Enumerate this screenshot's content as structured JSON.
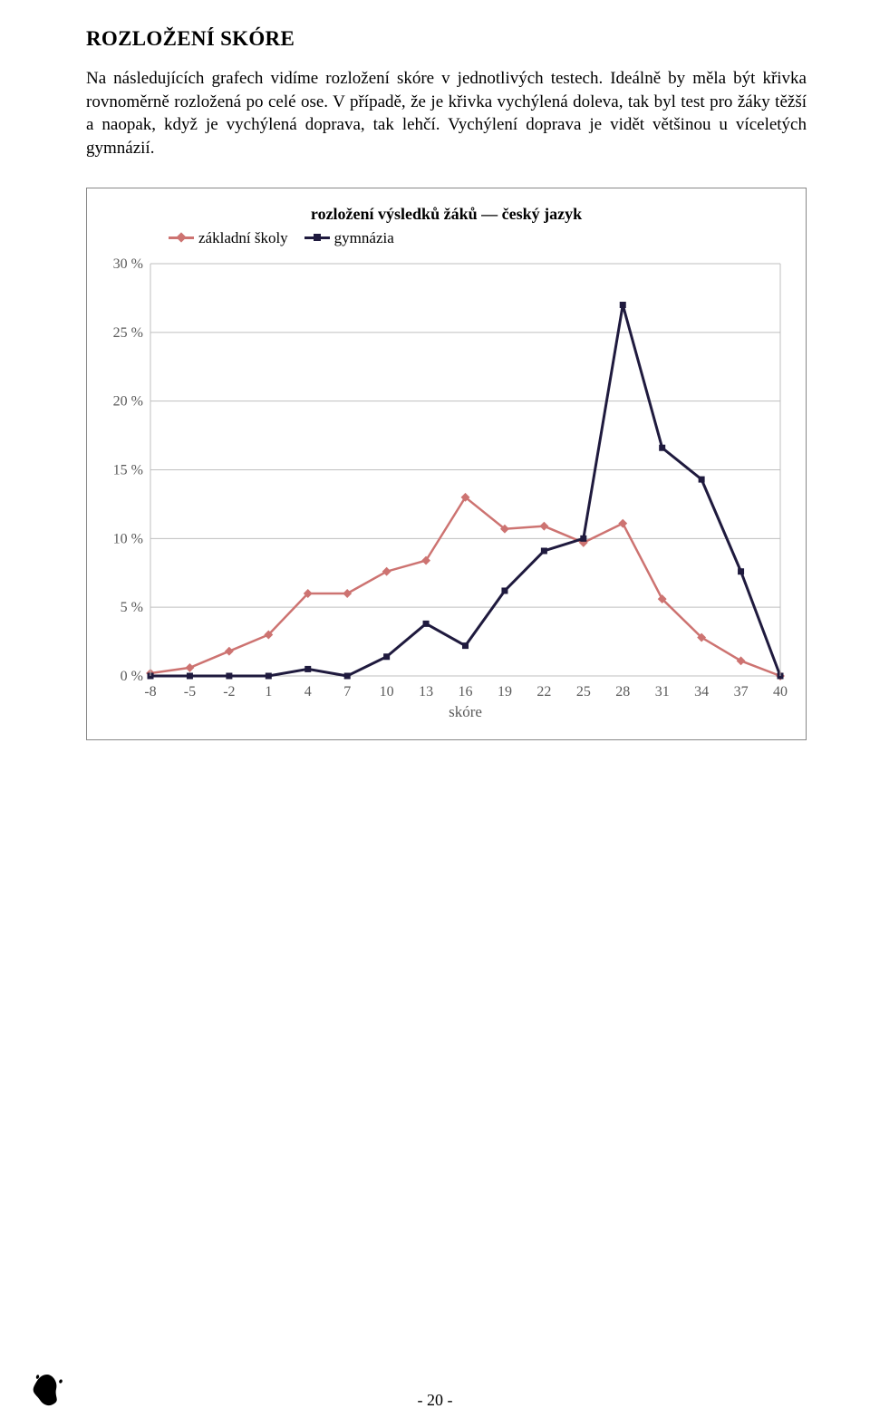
{
  "heading": "ROZLOŽENÍ SKÓRE",
  "paragraph": "Na následujících grafech vidíme rozložení skóre v jednotlivých testech. Ideálně by měla být křivka rovnoměrně rozložená po celé ose. V případě, že je křivka vychýlená doleva, tak byl test pro žáky těžší a naopak, když je vychýlená doprava, tak lehčí. Vychýlení doprava je vidět většinou u víceletých gymnázií.",
  "chart": {
    "title": "rozložení výsledků žáků — český jazyk",
    "type": "line",
    "x_label": "skóre",
    "x_ticks": [
      -8,
      -5,
      -2,
      1,
      4,
      7,
      10,
      13,
      16,
      19,
      22,
      25,
      28,
      31,
      34,
      37,
      40
    ],
    "y_ticks": [
      0,
      5,
      10,
      15,
      20,
      25,
      30
    ],
    "y_tick_labels": [
      "0 %",
      "5 %",
      "10 %",
      "15 %",
      "20 %",
      "25 %",
      "30 %"
    ],
    "xlim": [
      -8,
      40
    ],
    "ylim": [
      0,
      30
    ],
    "grid_color": "#bfbfbf",
    "background_color": "#ffffff",
    "series": [
      {
        "name": "základní školy",
        "color": "#cd7371",
        "marker": "diamond",
        "marker_size": 7,
        "line_width": 2.5,
        "x": [
          -8,
          -5,
          -2,
          1,
          4,
          7,
          10,
          13,
          16,
          19,
          22,
          25,
          28,
          31,
          34,
          37,
          40
        ],
        "y": [
          0.2,
          0.6,
          1.8,
          3.0,
          6.0,
          6.0,
          7.6,
          8.4,
          13.0,
          10.7,
          10.9,
          9.7,
          11.1,
          5.6,
          2.8,
          1.1,
          0.0
        ]
      },
      {
        "name": "gymnázia",
        "color": "#1f1a3e",
        "marker": "square",
        "marker_size": 7,
        "line_width": 3,
        "x": [
          -8,
          -5,
          -2,
          1,
          4,
          7,
          10,
          13,
          16,
          19,
          22,
          25,
          28,
          31,
          34,
          37,
          40
        ],
        "y": [
          0.0,
          0.0,
          0.0,
          0.0,
          0.5,
          0.0,
          1.4,
          3.8,
          2.2,
          6.2,
          9.1,
          10.0,
          27.0,
          16.6,
          14.3,
          7.6,
          0.0
        ]
      }
    ],
    "legend": {
      "items": [
        "základní školy",
        "gymnázia"
      ]
    },
    "tick_fontsize": 16,
    "title_fontsize": 18
  },
  "page_number": "- 20 -"
}
